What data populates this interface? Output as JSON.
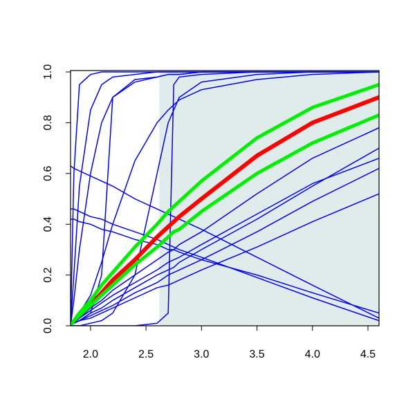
{
  "chart_data": {
    "type": "line",
    "xlim": [
      1.82,
      4.6
    ],
    "ylim": [
      0,
      1
    ],
    "xticks": [
      {
        "value": 2.0,
        "label": "2.0"
      },
      2.5,
      {
        "value": 3.0,
        "label": "3.0"
      },
      3.5,
      {
        "value": 4.0,
        "label": "4.0"
      },
      4.5
    ],
    "yticks": [
      {
        "value": 0,
        "label": "0.0"
      },
      0.2,
      0.4,
      0.6,
      0.8,
      {
        "value": 1,
        "label": "1.0"
      }
    ],
    "shaded_region": {
      "xlim": [
        2.62,
        4.6
      ],
      "color": "#e0ecec"
    },
    "x": [
      1.82,
      1.85,
      1.9,
      2.0,
      2.1,
      2.2,
      2.4,
      2.6,
      2.7,
      2.75,
      2.8,
      3.0,
      3.5,
      4.0,
      4.6
    ],
    "series": [
      {
        "color": "#0000ee",
        "width": 1.5,
        "values": [
          0,
          0.6,
          0.95,
          0.99,
          1,
          1,
          1,
          1,
          1,
          1,
          1,
          1,
          1,
          1,
          1
        ]
      },
      {
        "color": "#0000ee",
        "width": 1.5,
        "values": [
          0,
          0.2,
          0.55,
          0.85,
          0.95,
          0.98,
          0.99,
          1,
          1,
          1,
          1,
          1,
          1,
          1,
          1
        ]
      },
      {
        "color": "#0000ee",
        "width": 1.5,
        "values": [
          0,
          0.1,
          0.3,
          0.6,
          0.8,
          0.9,
          0.96,
          0.98,
          0.99,
          0.99,
          0.99,
          1,
          1,
          1,
          1
        ]
      },
      {
        "color": "#0000ee",
        "width": 1.5,
        "values": [
          0,
          0.01,
          0.02,
          0.05,
          0.2,
          0.9,
          0.97,
          0.98,
          0.99,
          0.99,
          0.99,
          1,
          1,
          1,
          1
        ]
      },
      {
        "color": "#0000ee",
        "width": 1.5,
        "values": [
          0,
          0,
          0,
          0,
          0,
          0,
          0,
          0.01,
          0.05,
          0.95,
          0.98,
          0.99,
          1,
          1,
          1
        ]
      },
      {
        "color": "#0000ee",
        "width": 1.5,
        "values": [
          0,
          0.02,
          0.05,
          0.12,
          0.25,
          0.4,
          0.65,
          0.8,
          0.85,
          0.87,
          0.89,
          0.93,
          0.97,
          0.99,
          1
        ]
      },
      {
        "color": "#0000ee",
        "width": 1.5,
        "values": [
          0,
          0,
          0,
          0.01,
          0.02,
          0.05,
          0.2,
          0.6,
          0.8,
          0.85,
          0.9,
          0.96,
          0.99,
          1,
          1
        ]
      },
      {
        "color": "#0000ee",
        "width": 1.5,
        "values": [
          0.63,
          0.62,
          0.61,
          0.59,
          0.57,
          0.55,
          0.5,
          0.46,
          0.44,
          0.43,
          0.42,
          0.38,
          0.27,
          0.16,
          0.03
        ]
      },
      {
        "color": "#0000ee",
        "width": 1.5,
        "values": [
          0.46,
          0.46,
          0.45,
          0.43,
          0.42,
          0.4,
          0.37,
          0.34,
          0.32,
          0.31,
          0.3,
          0.27,
          0.19,
          0.11,
          0.02
        ]
      },
      {
        "color": "#0000ee",
        "width": 1.5,
        "values": [
          0.42,
          0.42,
          0.41,
          0.4,
          0.38,
          0.37,
          0.34,
          0.32,
          0.3,
          0.3,
          0.29,
          0.26,
          0.2,
          0.13,
          0.05
        ]
      },
      {
        "color": "#0000ee",
        "width": 1.5,
        "values": [
          0,
          0.01,
          0.02,
          0.03,
          0.05,
          0.07,
          0.11,
          0.15,
          0.16,
          0.17,
          0.18,
          0.22,
          0.31,
          0.41,
          0.52
        ]
      },
      {
        "color": "#0000ee",
        "width": 1.5,
        "values": [
          0,
          0.01,
          0.02,
          0.04,
          0.06,
          0.08,
          0.13,
          0.17,
          0.2,
          0.21,
          0.22,
          0.26,
          0.37,
          0.49,
          0.62
        ]
      },
      {
        "color": "#0000ee",
        "width": 1.5,
        "values": [
          0,
          0.01,
          0.02,
          0.05,
          0.07,
          0.1,
          0.15,
          0.2,
          0.22,
          0.23,
          0.25,
          0.3,
          0.42,
          0.55,
          0.7
        ]
      },
      {
        "color": "#0000ee",
        "width": 1.5,
        "values": [
          0,
          0.01,
          0.03,
          0.06,
          0.09,
          0.12,
          0.17,
          0.22,
          0.25,
          0.26,
          0.27,
          0.32,
          0.44,
          0.56,
          0.66
        ]
      },
      {
        "color": "#0000ee",
        "width": 1.5,
        "values": [
          0,
          0.01,
          0.03,
          0.07,
          0.1,
          0.14,
          0.2,
          0.26,
          0.29,
          0.3,
          0.32,
          0.37,
          0.52,
          0.66,
          0.78
        ]
      },
      {
        "color": "#ff0000",
        "width": 6,
        "values": [
          null,
          null,
          null,
          0.08,
          0.13,
          0.18,
          0.26,
          0.35,
          0.39,
          0.41,
          0.43,
          0.5,
          0.67,
          0.8,
          0.9
        ]
      },
      {
        "color": "#00ee00",
        "width": 5,
        "values": [
          0,
          0.02,
          0.05,
          0.1,
          0.16,
          0.21,
          0.31,
          0.4,
          0.45,
          0.47,
          0.49,
          0.57,
          0.74,
          0.86,
          0.95
        ]
      },
      {
        "color": "#00ee00",
        "width": 5,
        "values": [
          0,
          0.02,
          0.04,
          0.08,
          0.12,
          0.16,
          0.24,
          0.31,
          0.35,
          0.37,
          0.38,
          0.45,
          0.6,
          0.72,
          0.83
        ]
      }
    ]
  }
}
